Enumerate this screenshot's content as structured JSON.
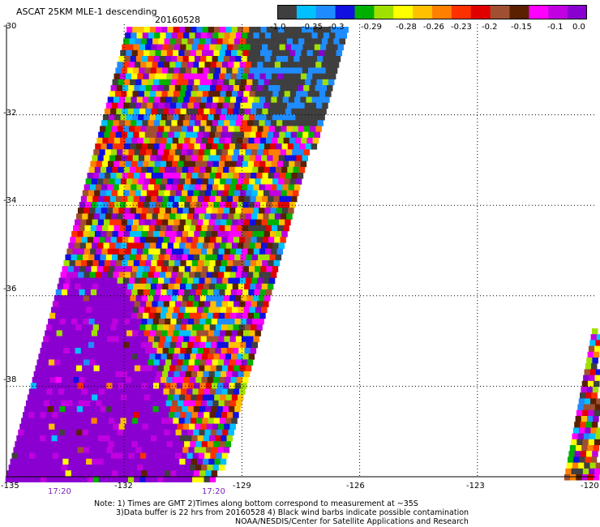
{
  "map": {
    "title": "ASCAT 25KM MLE-1 descending",
    "date": "20160528",
    "lat_labels": [
      "-30",
      "-32",
      "-34",
      "-36",
      "-38"
    ],
    "lon_labels": [
      "-135",
      "-132",
      "-129",
      "-126",
      "-123",
      "-120"
    ],
    "times": [
      "17:20",
      "17:20"
    ],
    "lat_range": [
      -40,
      -30
    ],
    "lon_range": [
      -135,
      -120
    ]
  },
  "colorbar": {
    "labels": [
      "-1.0",
      "-0.35",
      "-0.3",
      "-0.29",
      "-0.28",
      "-0.26",
      "-0.23",
      "-0.2",
      "-0.15",
      "-0.1",
      "0.0"
    ],
    "colors": [
      "#3f3f3f",
      "#00c0ff",
      "#1e8cff",
      "#1010e0",
      "#00b000",
      "#a0e000",
      "#ffff00",
      "#ffc000",
      "#ff8000",
      "#ff3000",
      "#e00000",
      "#a05030",
      "#5a2000",
      "#ff00ff",
      "#c000e0",
      "#8a00d0"
    ]
  },
  "notes": {
    "line1": "Note: 1) Times are GMT 2)Times along bottom correspond to measurement at ~35S",
    "line2": "3)Data buffer is 22 hrs from 20160528 4) Black wind barbs indicate possible contamination",
    "line3": "NOAA/NESDIS/Center for Satellite Applications and Research"
  }
}
